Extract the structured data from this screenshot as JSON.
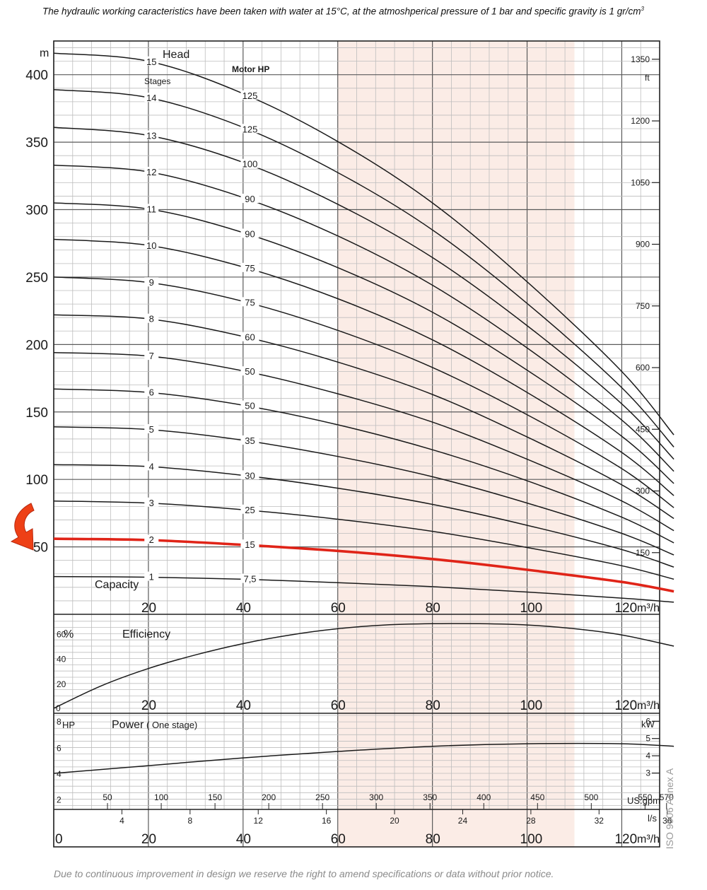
{
  "header_note": {
    "text": "The hydraulic working caracteristics have been taken with water at 15°C, at the atmoshperical pressure of 1 bar and specific gravity is 1 gr/cm",
    "sup": "3"
  },
  "footer_note": "Due to continuous improvement in design we reserve the right to amend specifications or data without prior notice.",
  "side_note": "ISO 9906 Annex A",
  "colors": {
    "grid": "#bdbdbd",
    "major_grid": "#5a5a5a",
    "curve": "#1a1a1a",
    "highlight_curve": "#e02418",
    "shade": "#fbece6",
    "arrow": "#ee4016"
  },
  "arrow_icon": "curved-arrow-icon",
  "chart_data": [
    {
      "type": "line",
      "panel": "head",
      "labels": {
        "y_unit": "m",
        "head": "Head",
        "stages": "Stages",
        "motor": "Motor HP",
        "capacity": "Capacity",
        "y2_unit": "ft",
        "x_unit": "m³/h"
      },
      "xlim": [
        0,
        128
      ],
      "ylim": [
        0,
        425
      ],
      "x_ticks": [
        20,
        40,
        60,
        80,
        100,
        120
      ],
      "y_ticks": [
        50,
        100,
        150,
        200,
        250,
        300,
        350,
        400
      ],
      "y2_ticks": [
        150,
        300,
        450,
        600,
        750,
        900,
        1050,
        1200,
        1350
      ],
      "shaded_x_range": [
        60,
        110
      ],
      "highlight_stage": "2",
      "x": [
        0,
        20,
        40,
        60,
        80,
        100,
        120,
        131
      ],
      "series": [
        {
          "stages": "1",
          "hp": "7,5",
          "y": [
            28,
            27.5,
            26,
            23.5,
            20.5,
            16.5,
            12,
            9
          ]
        },
        {
          "stages": "2",
          "hp": "15",
          "y": [
            56,
            55,
            51.5,
            47,
            41,
            33,
            24,
            17
          ]
        },
        {
          "stages": "3",
          "hp": "25",
          "y": [
            84,
            82.5,
            77.5,
            70.5,
            61.5,
            49.5,
            36,
            26
          ]
        },
        {
          "stages": "4",
          "hp": "30",
          "y": [
            111,
            109.5,
            103,
            93.5,
            81.5,
            66,
            48,
            35
          ]
        },
        {
          "stages": "5",
          "hp": "35",
          "y": [
            139,
            137,
            129,
            117,
            102,
            82.5,
            60,
            44
          ]
        },
        {
          "stages": "6",
          "hp": "50",
          "y": [
            167,
            164.5,
            155,
            140.5,
            122,
            99,
            72,
            53
          ]
        },
        {
          "stages": "7",
          "hp": "50",
          "y": [
            194,
            191.5,
            180.5,
            163.5,
            142.5,
            115,
            84,
            62
          ]
        },
        {
          "stages": "8",
          "hp": "60",
          "y": [
            222,
            219,
            206,
            187,
            163,
            131.5,
            96,
            71
          ]
        },
        {
          "stages": "9",
          "hp": "75",
          "y": [
            250,
            246,
            232,
            210.5,
            183,
            148,
            108,
            79
          ]
        },
        {
          "stages": "10",
          "hp": "75",
          "y": [
            278,
            273.5,
            257.5,
            234,
            203.5,
            164.5,
            120,
            88
          ]
        },
        {
          "stages": "11",
          "hp": "90",
          "y": [
            305,
            300.5,
            283,
            257,
            224,
            181,
            132,
            97
          ]
        },
        {
          "stages": "12",
          "hp": "90",
          "y": [
            333,
            328,
            309,
            280.5,
            244,
            197.5,
            144,
            106
          ]
        },
        {
          "stages": "13",
          "hp": "100",
          "y": [
            361,
            355,
            335,
            304,
            264.5,
            214,
            156,
            115
          ]
        },
        {
          "stages": "14",
          "hp": "125",
          "y": [
            389,
            383,
            361,
            327.5,
            285,
            230.5,
            168,
            124
          ]
        },
        {
          "stages": "15",
          "hp": "125",
          "y": [
            416,
            410,
            386,
            350.5,
            305,
            246.5,
            180,
            133
          ]
        }
      ]
    },
    {
      "type": "line",
      "panel": "efficiency",
      "labels": {
        "y_unit": "%",
        "title": "Efficiency",
        "x_unit": "m³/h"
      },
      "xlim": [
        0,
        128
      ],
      "ylim": [
        0,
        75
      ],
      "x_ticks": [
        20,
        40,
        60,
        80,
        100,
        120
      ],
      "y_ticks": [
        0,
        20,
        40,
        60
      ],
      "series": [
        {
          "x": [
            0,
            10,
            20,
            30,
            40,
            50,
            60,
            70,
            80,
            90,
            100,
            110,
            120,
            131
          ],
          "y": [
            0,
            18,
            32,
            43,
            52,
            59,
            64,
            67,
            68,
            68,
            67,
            64,
            59,
            50
          ]
        }
      ]
    },
    {
      "type": "line",
      "panel": "power",
      "labels": {
        "y_unit": "HP",
        "title": "Power",
        "subtitle": "( One stage)",
        "y2_unit": "kW",
        "x_unit": "m³/h",
        "gpm_unit": "US.gpm",
        "ls_unit": "l/s"
      },
      "xlim": [
        0,
        128
      ],
      "ylim": [
        1.2,
        8.5
      ],
      "y_ticks": [
        2,
        4,
        6,
        8
      ],
      "y2_ticks": [
        3,
        4,
        5,
        6
      ],
      "x_ticks": [
        0,
        20,
        40,
        60,
        80,
        100,
        120
      ],
      "gpm_ticks": [
        50,
        100,
        150,
        200,
        250,
        300,
        350,
        400,
        450,
        500,
        550,
        570
      ],
      "ls_ticks": [
        4,
        8,
        12,
        16,
        20,
        24,
        28,
        32,
        36
      ],
      "series": [
        {
          "x": [
            0,
            20,
            40,
            60,
            80,
            100,
            120,
            131
          ],
          "y": [
            4.0,
            4.6,
            5.2,
            5.7,
            6.1,
            6.3,
            6.3,
            6.1
          ]
        }
      ]
    }
  ]
}
